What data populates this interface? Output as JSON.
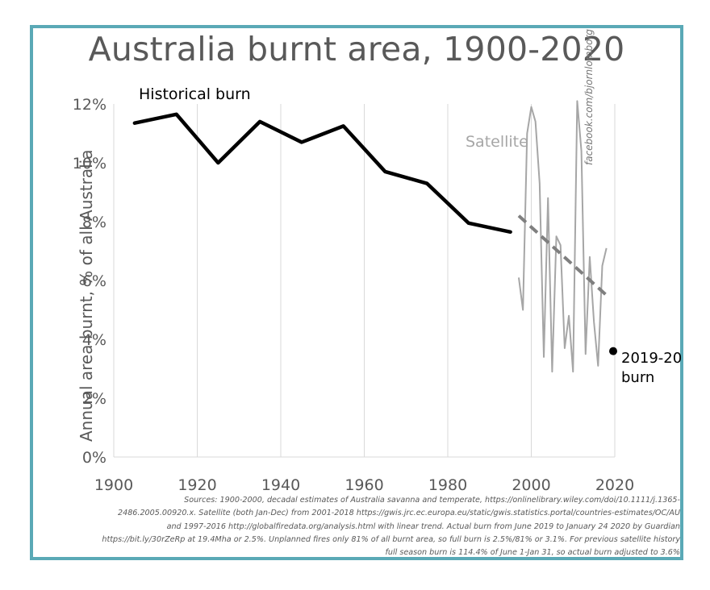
{
  "chart_data": {
    "type": "line",
    "title": "Australia burnt area, 1900-2020",
    "ylabel": "Annual area burnt, % of all Australia",
    "xlim": [
      1900,
      2020
    ],
    "ylim": [
      0,
      12
    ],
    "x_ticks": [
      "1900",
      "1920",
      "1940",
      "1960",
      "1980",
      "2000",
      "2020"
    ],
    "y_ticks": [
      "0%",
      "2%",
      "4%",
      "6%",
      "8%",
      "10%",
      "12%"
    ],
    "grid": "vertical",
    "series": [
      {
        "name": "Historical burn",
        "color": "#000000",
        "x": [
          1905,
          1915,
          1925,
          1935,
          1945,
          1955,
          1965,
          1975,
          1985,
          1995
        ],
        "y": [
          11.35,
          11.65,
          10.0,
          11.4,
          10.7,
          11.25,
          9.7,
          9.3,
          7.95,
          7.65
        ]
      },
      {
        "name": "Satellite",
        "color": "#a6a6a6",
        "x": [
          1997,
          1998,
          1999,
          2000,
          2001,
          2002,
          2003,
          2004,
          2005,
          2006,
          2007,
          2008,
          2009,
          2010,
          2011,
          2012,
          2013,
          2014,
          2015,
          2016,
          2017,
          2018
        ],
        "y": [
          6.1,
          5.0,
          11.0,
          11.9,
          11.4,
          9.3,
          3.4,
          8.8,
          2.9,
          7.5,
          7.2,
          3.7,
          4.8,
          2.9,
          12.1,
          10.4,
          3.5,
          6.8,
          4.6,
          3.1,
          6.5,
          7.1
        ]
      }
    ],
    "trend": {
      "name": "Satellite linear trend",
      "style": "dashed",
      "color": "#7f7f7f",
      "x": [
        1997,
        2018
      ],
      "y": [
        8.2,
        5.5
      ]
    },
    "point": {
      "label_line1": "2019-20",
      "label_line2": "burn",
      "x": 2020,
      "y": 3.6
    }
  },
  "watermark": "facebook.com/bjornlomborg",
  "sources": [
    "Sources: 1900-2000, decadal estimates of Australia savanna and temperate, https://onlinelibrary.wiley.com/doi/10.1111/j.1365-",
    "2486.2005.00920.x. Satellite (both Jan-Dec) from 2001-2018 https://gwis.jrc.ec.europa.eu/static/gwis.statistics.portal/countries-estimates/OC/AU",
    "and 1997-2016 http://globalfiredata.org/analysis.html with linear trend. Actual burn from June 2019 to January 24 2020 by Guardian",
    "https://bit.ly/30rZeRp at 19.4Mha or 2.5%. Unplanned fires only 81% of all burnt area, so full burn is 2.5%/81% or 3.1%. For previous satellite history",
    "full season burn is 114.4% of June 1-Jan 31, so actual burn adjusted to 3.6%"
  ]
}
